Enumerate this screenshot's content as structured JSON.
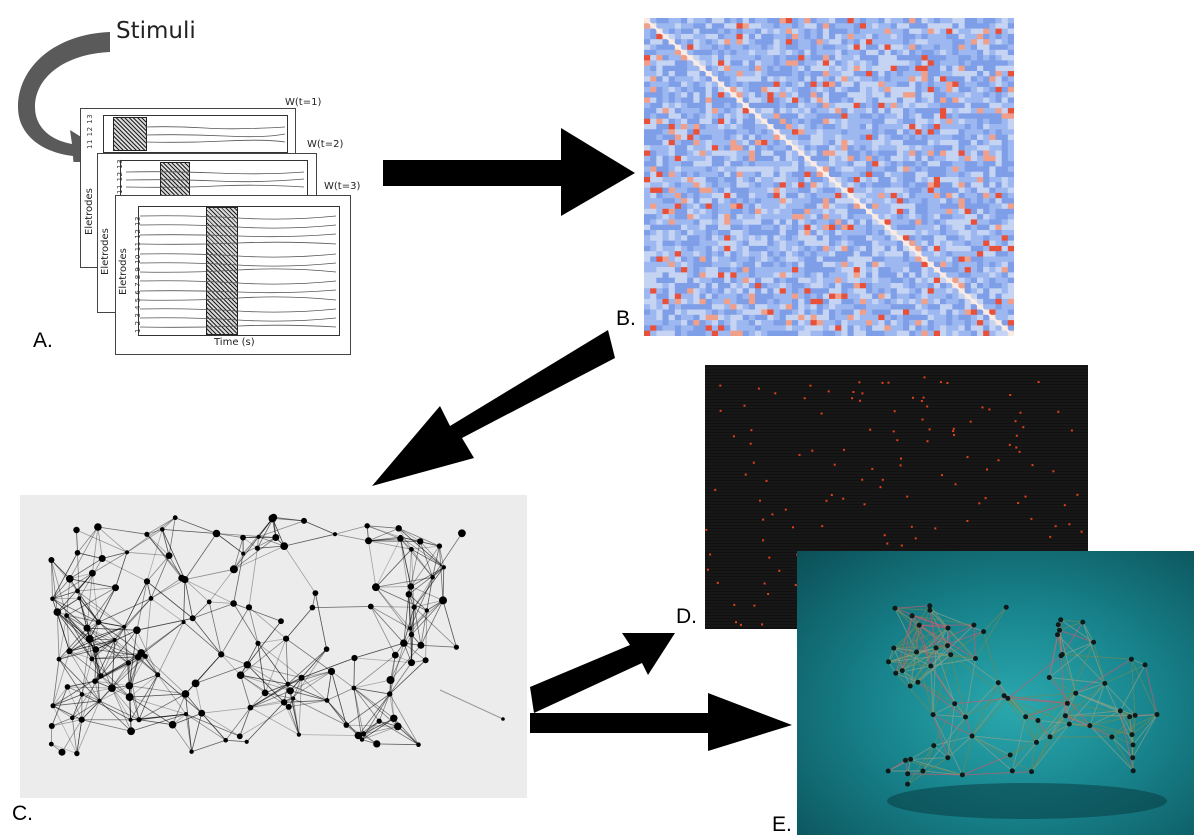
{
  "stimuli_label": "Stimuli",
  "panels": {
    "a": "A.",
    "b": "B.",
    "c": "C.",
    "d": "D.",
    "e": "E."
  },
  "eeg": {
    "window_labels": [
      "W(t=1)",
      "W(t=2)",
      "W(t=3)"
    ],
    "ylabel": "Eletrodes",
    "xlabel": "Time (s)",
    "electrode_ticks": "1 2 3 4 5 6 7 8 9 10 11 12 13",
    "electrode_ticks_short": "11 12 13"
  },
  "colors": {
    "arrow": "#000000",
    "heatmap_base": "#9db8f0",
    "heatmap_hot": "#e8503a",
    "raster_bg": "#111111",
    "raster_dot": "#e0401a",
    "render_bg": "#1a8a92",
    "graph_bg": "#ececec"
  }
}
